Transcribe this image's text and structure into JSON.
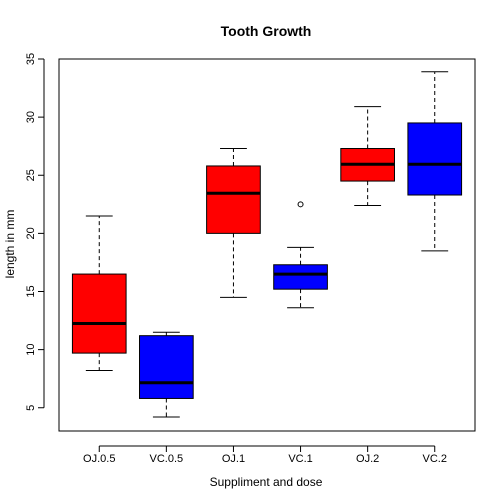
{
  "chart_data": {
    "type": "box",
    "title": "Tooth Growth",
    "xlabel": "Suppliment and dose",
    "ylabel": "length in mm",
    "ylim": [
      3,
      35
    ],
    "yticks": [
      5,
      10,
      15,
      20,
      25,
      30,
      35
    ],
    "grid": false,
    "categories": [
      "OJ.0.5",
      "VC.0.5",
      "OJ.1",
      "VC.1",
      "OJ.2",
      "VC.2"
    ],
    "boxes": [
      {
        "name": "OJ.0.5",
        "color": "#ff0000",
        "whisker_low": 8.2,
        "q1": 9.7,
        "median": 12.25,
        "q3": 16.5,
        "whisker_high": 21.5,
        "outliers": []
      },
      {
        "name": "VC.0.5",
        "color": "#0000ff",
        "whisker_low": 4.2,
        "q1": 5.8,
        "median": 7.15,
        "q3": 11.2,
        "whisker_high": 11.5,
        "outliers": []
      },
      {
        "name": "OJ.1",
        "color": "#ff0000",
        "whisker_low": 14.5,
        "q1": 20.0,
        "median": 23.45,
        "q3": 25.8,
        "whisker_high": 27.3,
        "outliers": []
      },
      {
        "name": "VC.1",
        "color": "#0000ff",
        "whisker_low": 13.6,
        "q1": 15.2,
        "median": 16.5,
        "q3": 17.3,
        "whisker_high": 18.8,
        "outliers": [
          22.5
        ]
      },
      {
        "name": "OJ.2",
        "color": "#ff0000",
        "whisker_low": 22.4,
        "q1": 24.5,
        "median": 25.95,
        "q3": 27.3,
        "whisker_high": 30.9,
        "outliers": []
      },
      {
        "name": "VC.2",
        "color": "#0000ff",
        "whisker_low": 18.5,
        "q1": 23.3,
        "median": 25.95,
        "q3": 29.5,
        "whisker_high": 33.9,
        "outliers": []
      }
    ]
  }
}
